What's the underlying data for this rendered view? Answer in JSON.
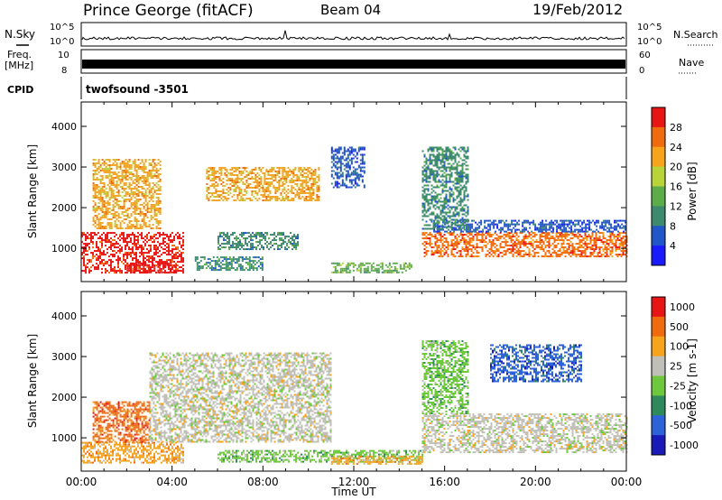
{
  "header": {
    "station": "Prince George (fitACF)",
    "beam": "Beam 04",
    "date": "19/Feb/2012"
  },
  "summary": {
    "nsky_label": "N.Sky",
    "nsky_ticks": [
      "10^5",
      "10^0"
    ],
    "nsearch_label": "N.Search",
    "nsearch_ticks": [
      "10^5",
      "10^0"
    ],
    "freq_label": "Freq.",
    "freq_unit": "[MHz]",
    "freq_ticks": [
      "10",
      "8"
    ],
    "nave_label": "Nave",
    "nave_ticks": [
      "60",
      "0"
    ],
    "cpid_label": "CPID",
    "cpid_value": "twofsound -3501"
  },
  "chart_data": [
    {
      "type": "heatmap",
      "name": "power",
      "ylabel": "Slant Range [km]",
      "ylim": [
        180,
        4600
      ],
      "yticks": [
        "1000",
        "2000",
        "3000",
        "4000"
      ],
      "xlim_hours": [
        0,
        24
      ],
      "colorbar": {
        "label": "Power [dB]",
        "ticks": [
          "4",
          "8",
          "12",
          "16",
          "20",
          "24",
          "28"
        ],
        "colors": [
          "#1a1aff",
          "#2156c8",
          "#3e8a6e",
          "#5cac4a",
          "#b8d438",
          "#f5a41c",
          "#f06a0e",
          "#e81515"
        ]
      },
      "regions": [
        {
          "t0": 0.0,
          "t1": 4.5,
          "r0": 400,
          "r1": 1400,
          "level": 7
        },
        {
          "t0": 2.0,
          "t1": 4.2,
          "r0": 400,
          "r1": 650,
          "level": 7
        },
        {
          "t0": 0.5,
          "t1": 3.5,
          "r0": 1500,
          "r1": 3200,
          "level": 5
        },
        {
          "t0": 5.5,
          "t1": 10.5,
          "r0": 2200,
          "r1": 3000,
          "level": 5
        },
        {
          "t0": 6.0,
          "t1": 9.5,
          "r0": 1000,
          "r1": 1400,
          "level": 2
        },
        {
          "t0": 5.0,
          "t1": 8.0,
          "r0": 450,
          "r1": 800,
          "level": 2
        },
        {
          "t0": 11.0,
          "t1": 14.5,
          "r0": 400,
          "r1": 650,
          "level": 3
        },
        {
          "t0": 15.0,
          "t1": 24.0,
          "r0": 800,
          "r1": 1400,
          "level": 6
        },
        {
          "t0": 15.5,
          "t1": 24.0,
          "r0": 1400,
          "r1": 1700,
          "level": 1
        },
        {
          "t0": 15.0,
          "t1": 17.0,
          "r0": 1500,
          "r1": 3500,
          "level": 2
        },
        {
          "t0": 11.0,
          "t1": 12.5,
          "r0": 2500,
          "r1": 3500,
          "level": 1
        }
      ]
    },
    {
      "type": "heatmap",
      "name": "velocity",
      "ylabel": "Slant Range [km]",
      "xlabel": "Time UT",
      "ylim": [
        180,
        4600
      ],
      "yticks": [
        "1000",
        "2000",
        "3000",
        "4000"
      ],
      "xticks": [
        "00:00",
        "04:00",
        "08:00",
        "12:00",
        "16:00",
        "20:00",
        "00:00"
      ],
      "xlim_hours": [
        0,
        24
      ],
      "colorbar": {
        "label": "Velocity [m s-1]",
        "ticks": [
          "1000",
          "500",
          "100",
          "25",
          "-25",
          "-100",
          "-500",
          "-1000"
        ],
        "colors": [
          "#1a1ab8",
          "#2e62d8",
          "#2e8a5a",
          "#6ec83c",
          "#c0c0b8",
          "#f5a41c",
          "#f06a0e",
          "#e81515"
        ]
      },
      "regions": [
        {
          "t0": 0.0,
          "t1": 4.5,
          "r0": 400,
          "r1": 900,
          "level": 5
        },
        {
          "t0": 0.5,
          "t1": 3.0,
          "r0": 900,
          "r1": 1900,
          "level": 6
        },
        {
          "t0": 3.0,
          "t1": 11.0,
          "r0": 900,
          "r1": 3100,
          "level": 4
        },
        {
          "t0": 6.0,
          "t1": 15.0,
          "r0": 400,
          "r1": 700,
          "level": 3
        },
        {
          "t0": 11.0,
          "t1": 15.0,
          "r0": 380,
          "r1": 560,
          "level": 5
        },
        {
          "t0": 15.0,
          "t1": 24.0,
          "r0": 650,
          "r1": 1600,
          "level": 4
        },
        {
          "t0": 15.0,
          "t1": 17.0,
          "r0": 1600,
          "r1": 3400,
          "level": 3
        },
        {
          "t0": 18.0,
          "t1": 22.0,
          "r0": 2400,
          "r1": 3300,
          "level": 1
        }
      ]
    }
  ]
}
